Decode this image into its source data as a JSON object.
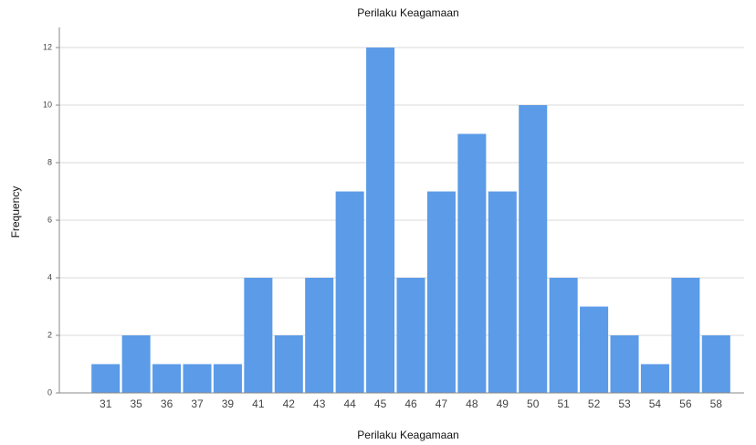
{
  "chart_data": {
    "type": "bar",
    "title": "Perilaku Keagamaan",
    "x_label": "Perilaku Keagamaan",
    "y_label": "Frequency",
    "categories": [
      "31",
      "35",
      "36",
      "37",
      "39",
      "41",
      "42",
      "43",
      "44",
      "45",
      "46",
      "47",
      "48",
      "49",
      "50",
      "51",
      "52",
      "53",
      "54",
      "56",
      "58"
    ],
    "values": [
      1,
      2,
      1,
      1,
      1,
      4,
      2,
      4,
      7,
      12,
      4,
      7,
      9,
      7,
      10,
      4,
      3,
      2,
      1,
      4,
      2
    ],
    "color": "#5b9be8",
    "ylim": [
      0,
      12.7
    ],
    "yticks": [
      0,
      2,
      4,
      6,
      8,
      10,
      12
    ],
    "grid": true
  }
}
